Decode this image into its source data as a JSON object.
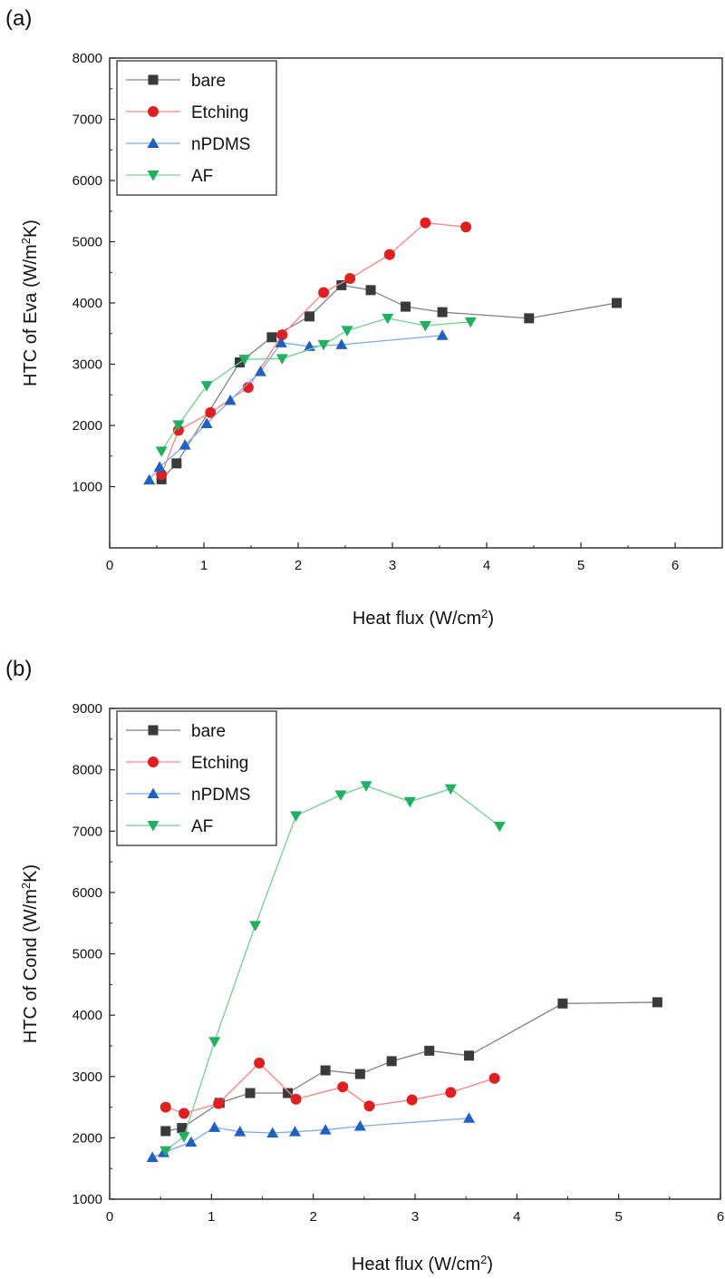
{
  "chart_data": [
    {
      "panel_label": "(a)",
      "type": "line",
      "xlabel": "Heat flux (W/cm²)",
      "ylabel": "HTC of Eva (W/m²K)",
      "xlim": [
        0,
        6.5
      ],
      "ylim": [
        0,
        8000
      ],
      "xticks": [
        0,
        1,
        2,
        3,
        4,
        5,
        6
      ],
      "yticks": [
        1000,
        2000,
        3000,
        4000,
        5000,
        6000,
        7000,
        8000
      ],
      "legend_position": "top-left",
      "grid": false,
      "series": [
        {
          "name": "bare",
          "color": "#808080",
          "marker": "square",
          "marker_color": "#3a3a3a",
          "x": [
            0.55,
            0.71,
            1.38,
            1.72,
            2.12,
            2.46,
            2.77,
            3.14,
            3.53,
            4.45,
            5.38
          ],
          "y": [
            1120,
            1380,
            3030,
            3440,
            3780,
            4290,
            4210,
            3940,
            3850,
            3750,
            4000
          ]
        },
        {
          "name": "Etching",
          "color": "#ff8080",
          "marker": "circle",
          "marker_color": "#e02020",
          "x": [
            0.55,
            0.73,
            1.07,
            1.47,
            1.83,
            2.27,
            2.55,
            2.97,
            3.35,
            3.78
          ],
          "y": [
            1200,
            1920,
            2210,
            2620,
            3480,
            4170,
            4400,
            4790,
            5310,
            5240
          ]
        },
        {
          "name": "nPDMS",
          "color": "#7aaaf0",
          "marker": "triangle-up",
          "marker_color": "#2060c0",
          "x": [
            0.42,
            0.53,
            0.8,
            1.03,
            1.28,
            1.6,
            1.82,
            2.12,
            2.46,
            3.53
          ],
          "y": [
            1110,
            1320,
            1680,
            2030,
            2410,
            2880,
            3350,
            3290,
            3320,
            3470
          ]
        },
        {
          "name": "AF",
          "color": "#70d090",
          "marker": "triangle-down",
          "marker_color": "#20b060",
          "x": [
            0.55,
            0.73,
            1.03,
            1.43,
            1.83,
            2.27,
            2.52,
            2.95,
            3.35,
            3.83
          ],
          "y": [
            1580,
            2010,
            2650,
            3080,
            3090,
            3320,
            3550,
            3750,
            3630,
            3690
          ]
        }
      ]
    },
    {
      "panel_label": "(b)",
      "type": "line",
      "xlabel": "Heat flux (W/cm²)",
      "ylabel": "HTC of Cond (W/m²K)",
      "xlim": [
        0,
        6
      ],
      "ylim": [
        1000,
        9000
      ],
      "xticks": [
        0,
        1,
        2,
        3,
        4,
        5,
        6
      ],
      "yticks": [
        1000,
        2000,
        3000,
        4000,
        5000,
        6000,
        7000,
        8000,
        9000
      ],
      "legend_position": "top-left",
      "grid": false,
      "series": [
        {
          "name": "bare",
          "color": "#808080",
          "marker": "square",
          "marker_color": "#3a3a3a",
          "x": [
            0.55,
            0.71,
            1.08,
            1.38,
            1.75,
            2.12,
            2.46,
            2.77,
            3.14,
            3.53,
            4.45,
            5.38
          ],
          "y": [
            2110,
            2160,
            2570,
            2730,
            2730,
            3100,
            3040,
            3250,
            3420,
            3340,
            4190,
            4210
          ]
        },
        {
          "name": "Etching",
          "color": "#ff8080",
          "marker": "circle",
          "marker_color": "#e02020",
          "x": [
            0.55,
            0.73,
            1.07,
            1.47,
            1.83,
            2.29,
            2.55,
            2.97,
            3.35,
            3.78
          ],
          "y": [
            2500,
            2400,
            2560,
            3220,
            2630,
            2830,
            2520,
            2620,
            2740,
            2970
          ]
        },
        {
          "name": "nPDMS",
          "color": "#7aaaf0",
          "marker": "triangle-up",
          "marker_color": "#2060c0",
          "x": [
            0.42,
            0.53,
            0.8,
            1.03,
            1.28,
            1.6,
            1.82,
            2.12,
            2.46,
            3.53
          ],
          "y": [
            1680,
            1760,
            1930,
            2170,
            2100,
            2080,
            2100,
            2130,
            2190,
            2320
          ]
        },
        {
          "name": "AF",
          "color": "#70d090",
          "marker": "triangle-down",
          "marker_color": "#20b060",
          "x": [
            0.55,
            0.73,
            1.03,
            1.43,
            1.83,
            2.27,
            2.52,
            2.95,
            3.35,
            3.83
          ],
          "y": [
            1790,
            2020,
            3570,
            5460,
            7250,
            7590,
            7740,
            7480,
            7690,
            7080
          ]
        }
      ]
    }
  ]
}
